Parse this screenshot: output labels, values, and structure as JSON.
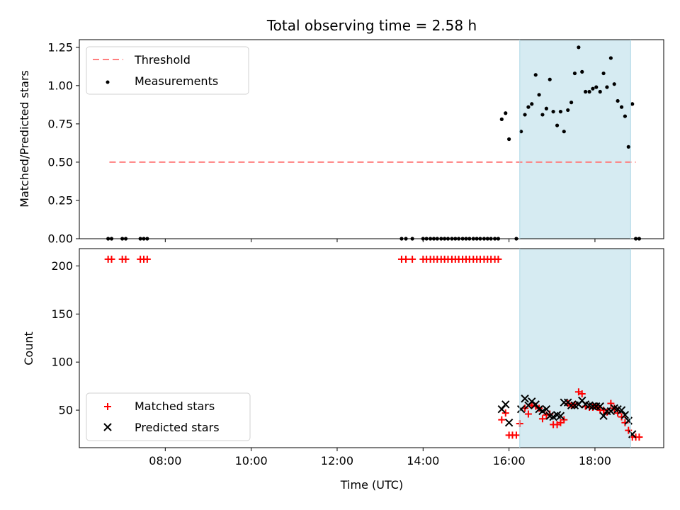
{
  "chart_data": {
    "type": "scatter",
    "title": "Total observing time = 2.58 h",
    "xlabel": "Time (UTC)",
    "x_ticks": [
      "08:00",
      "10:00",
      "12:00",
      "14:00",
      "16:00",
      "18:00"
    ],
    "x_tick_hours": [
      8,
      10,
      12,
      14,
      16,
      18
    ],
    "xlim_hours": [
      6.0,
      19.6
    ],
    "highlight_span_hours": [
      16.25,
      18.83
    ],
    "colors": {
      "threshold": "#ff7f7f",
      "measurements": "#000000",
      "matched": "#ff0000",
      "predicted": "#000000",
      "highlight": "#add8e6"
    },
    "panels": [
      {
        "ylabel": "Matched/Predicted stars",
        "ylim": [
          0,
          1.3
        ],
        "y_ticks": [
          "0.00",
          "0.25",
          "0.50",
          "0.75",
          "1.00",
          "1.25"
        ],
        "y_tick_values": [
          0,
          0.25,
          0.5,
          0.75,
          1.0,
          1.25
        ],
        "legend": {
          "placement": "top-left",
          "entries": [
            "Threshold",
            "Measurements"
          ]
        },
        "threshold": {
          "name": "Threshold",
          "y": 0.5,
          "x_range_hours": [
            6.7,
            18.95
          ]
        },
        "measurements": {
          "name": "Measurements",
          "points": [
            [
              6.67,
              0
            ],
            [
              6.75,
              0
            ],
            [
              7.0,
              0
            ],
            [
              7.08,
              0
            ],
            [
              7.42,
              0
            ],
            [
              7.5,
              0
            ],
            [
              7.58,
              0
            ],
            [
              13.5,
              0
            ],
            [
              13.6,
              0
            ],
            [
              13.75,
              0
            ],
            [
              14.0,
              0
            ],
            [
              14.08,
              0
            ],
            [
              14.17,
              0
            ],
            [
              14.25,
              0
            ],
            [
              14.33,
              0
            ],
            [
              14.42,
              0
            ],
            [
              14.5,
              0
            ],
            [
              14.58,
              0
            ],
            [
              14.67,
              0
            ],
            [
              14.75,
              0
            ],
            [
              14.83,
              0
            ],
            [
              14.92,
              0
            ],
            [
              15.0,
              0
            ],
            [
              15.08,
              0
            ],
            [
              15.17,
              0
            ],
            [
              15.25,
              0
            ],
            [
              15.33,
              0
            ],
            [
              15.42,
              0
            ],
            [
              15.5,
              0
            ],
            [
              15.58,
              0
            ],
            [
              15.67,
              0
            ],
            [
              15.75,
              0
            ],
            [
              15.83,
              0.78
            ],
            [
              15.92,
              0.82
            ],
            [
              16.0,
              0.65
            ],
            [
              16.17,
              0
            ],
            [
              16.28,
              0.7
            ],
            [
              16.37,
              0.81
            ],
            [
              16.45,
              0.86
            ],
            [
              16.53,
              0.88
            ],
            [
              16.62,
              1.07
            ],
            [
              16.7,
              0.94
            ],
            [
              16.78,
              0.81
            ],
            [
              16.87,
              0.85
            ],
            [
              16.95,
              1.04
            ],
            [
              17.03,
              0.83
            ],
            [
              17.12,
              0.74
            ],
            [
              17.2,
              0.83
            ],
            [
              17.28,
              0.7
            ],
            [
              17.37,
              0.84
            ],
            [
              17.45,
              0.89
            ],
            [
              17.53,
              1.08
            ],
            [
              17.62,
              1.25
            ],
            [
              17.7,
              1.09
            ],
            [
              17.78,
              0.96
            ],
            [
              17.87,
              0.96
            ],
            [
              17.95,
              0.98
            ],
            [
              18.03,
              0.99
            ],
            [
              18.12,
              0.96
            ],
            [
              18.2,
              1.08
            ],
            [
              18.28,
              0.99
            ],
            [
              18.37,
              1.18
            ],
            [
              18.45,
              1.01
            ],
            [
              18.53,
              0.9
            ],
            [
              18.62,
              0.86
            ],
            [
              18.7,
              0.8
            ],
            [
              18.78,
              0.6
            ],
            [
              18.87,
              0.88
            ],
            [
              18.95,
              0
            ],
            [
              19.03,
              0
            ]
          ]
        }
      },
      {
        "ylabel": "Count",
        "ylim": [
          11,
          218
        ],
        "y_ticks": [
          "50",
          "100",
          "150",
          "200"
        ],
        "y_tick_values": [
          50,
          100,
          150,
          200
        ],
        "legend": {
          "placement": "bottom-left",
          "entries": [
            "Matched stars",
            "Predicted stars"
          ]
        },
        "matched": {
          "name": "Matched stars",
          "points": [
            [
              6.67,
              207
            ],
            [
              6.75,
              207
            ],
            [
              7.0,
              207
            ],
            [
              7.08,
              207
            ],
            [
              7.42,
              207
            ],
            [
              7.5,
              207
            ],
            [
              7.58,
              207
            ],
            [
              13.5,
              207
            ],
            [
              13.6,
              207
            ],
            [
              13.75,
              207
            ],
            [
              14.0,
              207
            ],
            [
              14.08,
              207
            ],
            [
              14.17,
              207
            ],
            [
              14.25,
              207
            ],
            [
              14.33,
              207
            ],
            [
              14.42,
              207
            ],
            [
              14.5,
              207
            ],
            [
              14.58,
              207
            ],
            [
              14.67,
              207
            ],
            [
              14.75,
              207
            ],
            [
              14.83,
              207
            ],
            [
              14.92,
              207
            ],
            [
              15.0,
              207
            ],
            [
              15.08,
              207
            ],
            [
              15.17,
              207
            ],
            [
              15.25,
              207
            ],
            [
              15.33,
              207
            ],
            [
              15.42,
              207
            ],
            [
              15.5,
              207
            ],
            [
              15.58,
              207
            ],
            [
              15.67,
              207
            ],
            [
              15.75,
              207
            ],
            [
              15.83,
              40
            ],
            [
              15.92,
              47
            ],
            [
              16.0,
              24
            ],
            [
              16.08,
              24
            ],
            [
              16.17,
              24
            ],
            [
              16.25,
              36
            ],
            [
              16.37,
              52
            ],
            [
              16.45,
              46
            ],
            [
              16.53,
              55
            ],
            [
              16.62,
              54
            ],
            [
              16.7,
              52
            ],
            [
              16.78,
              41
            ],
            [
              16.87,
              45
            ],
            [
              16.95,
              46
            ],
            [
              17.03,
              35
            ],
            [
              17.12,
              35
            ],
            [
              17.2,
              37
            ],
            [
              17.28,
              40
            ],
            [
              17.37,
              57
            ],
            [
              17.45,
              55
            ],
            [
              17.53,
              56
            ],
            [
              17.62,
              69
            ],
            [
              17.7,
              67
            ],
            [
              17.78,
              54
            ],
            [
              17.87,
              53
            ],
            [
              17.95,
              53
            ],
            [
              18.03,
              54
            ],
            [
              18.12,
              50
            ],
            [
              18.2,
              50
            ],
            [
              18.28,
              48
            ],
            [
              18.37,
              57
            ],
            [
              18.45,
              52
            ],
            [
              18.53,
              47
            ],
            [
              18.62,
              43
            ],
            [
              18.7,
              37
            ],
            [
              18.78,
              29
            ],
            [
              18.87,
              22
            ],
            [
              18.95,
              22
            ],
            [
              19.03,
              22
            ]
          ]
        },
        "predicted": {
          "name": "Predicted stars",
          "points": [
            [
              15.83,
              51
            ],
            [
              15.92,
              56
            ],
            [
              16.0,
              37
            ],
            [
              16.28,
              51
            ],
            [
              16.37,
              62
            ],
            [
              16.45,
              55
            ],
            [
              16.53,
              59
            ],
            [
              16.62,
              56
            ],
            [
              16.7,
              51
            ],
            [
              16.78,
              49
            ],
            [
              16.87,
              51
            ],
            [
              16.95,
              44
            ],
            [
              17.03,
              43
            ],
            [
              17.12,
              45
            ],
            [
              17.2,
              44
            ],
            [
              17.28,
              58
            ],
            [
              17.37,
              58
            ],
            [
              17.45,
              55
            ],
            [
              17.53,
              55
            ],
            [
              17.62,
              56
            ],
            [
              17.7,
              60
            ],
            [
              17.78,
              56
            ],
            [
              17.87,
              55
            ],
            [
              17.95,
              54
            ],
            [
              18.03,
              54
            ],
            [
              18.12,
              54
            ],
            [
              18.2,
              44
            ],
            [
              18.28,
              49
            ],
            [
              18.37,
              49
            ],
            [
              18.45,
              52
            ],
            [
              18.53,
              51
            ],
            [
              18.62,
              50
            ],
            [
              18.7,
              45
            ],
            [
              18.78,
              39
            ],
            [
              18.87,
              25
            ]
          ]
        }
      }
    ]
  }
}
